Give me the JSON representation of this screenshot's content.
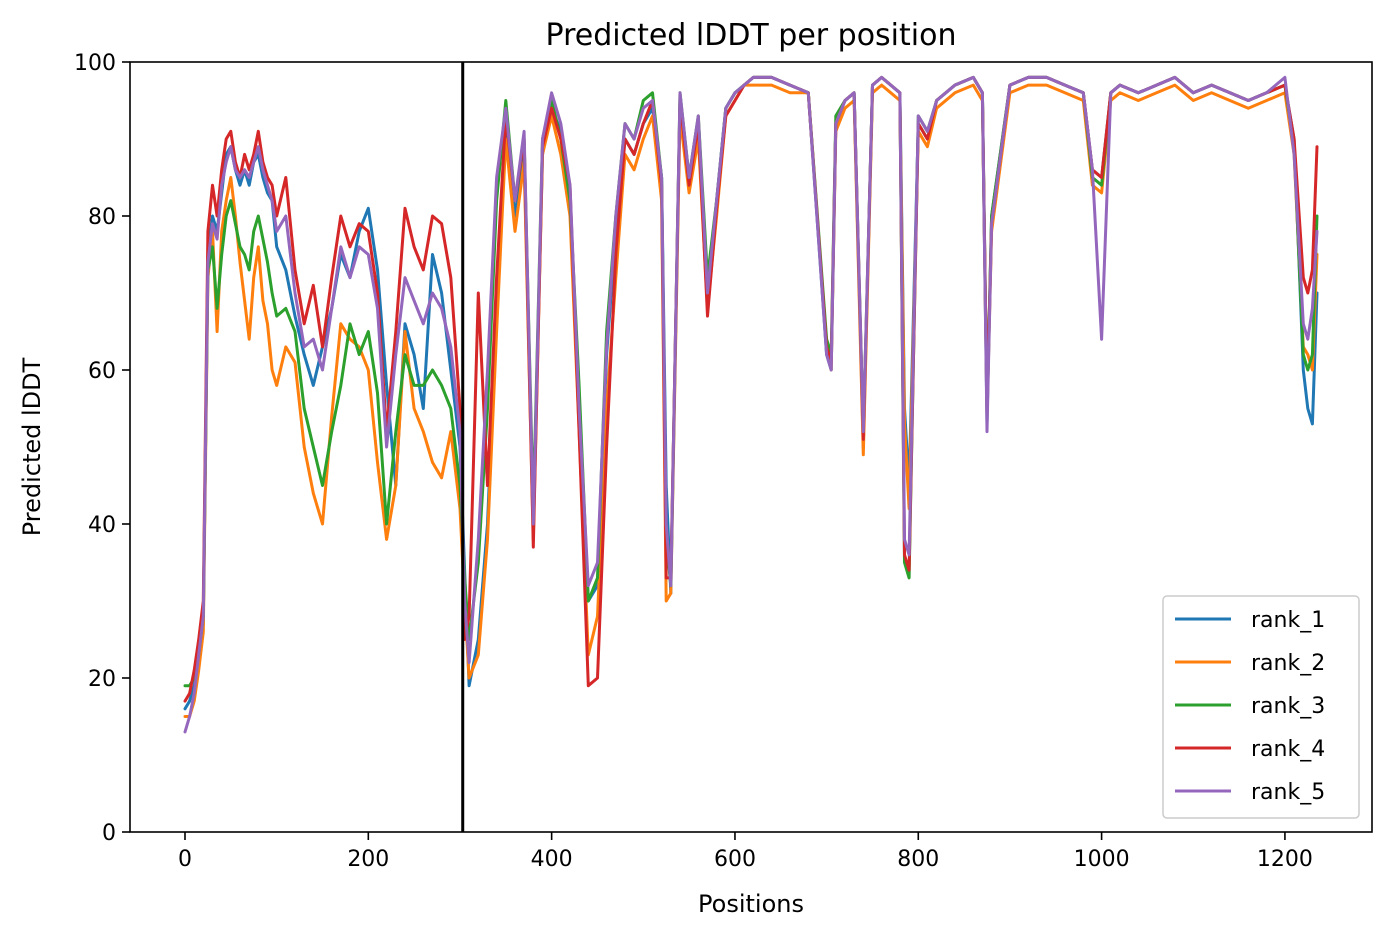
{
  "chart_data": {
    "type": "line",
    "title": "Predicted lDDT per position",
    "xlabel": "Positions",
    "ylabel": "Predicted lDDT",
    "xlim": [
      -60,
      1295
    ],
    "ylim": [
      0,
      100
    ],
    "xticks": [
      0,
      200,
      400,
      600,
      800,
      1000,
      1200
    ],
    "yticks": [
      0,
      20,
      40,
      60,
      80,
      100
    ],
    "vline_x": 303,
    "legend_position": "lower-right",
    "grid": false,
    "colors": {
      "rank_1": "#1f77b4",
      "rank_2": "#ff7f0e",
      "rank_3": "#2ca02c",
      "rank_4": "#d62728",
      "rank_5": "#9467bd",
      "vline": "#000000"
    },
    "series": [
      {
        "name": "rank_1",
        "x": [
          0,
          5,
          10,
          15,
          20,
          25,
          30,
          35,
          40,
          45,
          50,
          55,
          60,
          65,
          70,
          75,
          80,
          85,
          90,
          95,
          100,
          110,
          120,
          130,
          140,
          150,
          160,
          170,
          180,
          190,
          200,
          210,
          220,
          230,
          240,
          250,
          260,
          270,
          280,
          290,
          300,
          305,
          310,
          320,
          330,
          340,
          350,
          360,
          370,
          380,
          390,
          400,
          410,
          420,
          430,
          440,
          450,
          460,
          470,
          480,
          490,
          500,
          510,
          520,
          525,
          530,
          540,
          550,
          560,
          570,
          580,
          590,
          600,
          610,
          620,
          640,
          660,
          680,
          700,
          705,
          710,
          720,
          730,
          740,
          750,
          760,
          770,
          780,
          785,
          790,
          800,
          810,
          820,
          840,
          860,
          870,
          875,
          880,
          900,
          920,
          940,
          960,
          980,
          990,
          1000,
          1010,
          1020,
          1040,
          1060,
          1080,
          1090,
          1100,
          1120,
          1140,
          1160,
          1180,
          1200,
          1210,
          1220,
          1225,
          1230,
          1235
        ],
        "y": [
          16,
          17,
          19,
          22,
          27,
          75,
          80,
          78,
          83,
          88,
          89,
          86,
          84,
          86,
          84,
          87,
          88,
          85,
          83,
          82,
          76,
          73,
          67,
          62,
          58,
          63,
          68,
          75,
          72,
          78,
          81,
          73,
          58,
          45,
          66,
          62,
          55,
          75,
          70,
          60,
          50,
          34,
          19,
          25,
          40,
          68,
          92,
          80,
          88,
          40,
          88,
          94,
          91,
          83,
          55,
          30,
          32,
          62,
          78,
          90,
          88,
          92,
          94,
          85,
          45,
          31,
          95,
          85,
          92,
          70,
          82,
          94,
          96,
          97,
          98,
          98,
          97,
          96,
          62,
          60,
          92,
          95,
          96,
          50,
          97,
          98,
          97,
          96,
          55,
          45,
          92,
          90,
          95,
          97,
          98,
          96,
          53,
          80,
          97,
          98,
          98,
          97,
          96,
          86,
          85,
          96,
          97,
          96,
          97,
          98,
          97,
          96,
          97,
          96,
          95,
          96,
          97,
          90,
          60,
          55,
          53,
          70
        ]
      },
      {
        "name": "rank_2",
        "x": [
          0,
          5,
          10,
          15,
          20,
          25,
          30,
          35,
          40,
          45,
          50,
          55,
          60,
          65,
          70,
          75,
          80,
          85,
          90,
          95,
          100,
          110,
          120,
          130,
          140,
          150,
          160,
          170,
          180,
          190,
          200,
          210,
          220,
          230,
          240,
          250,
          260,
          270,
          280,
          290,
          300,
          305,
          310,
          320,
          330,
          340,
          350,
          360,
          370,
          380,
          390,
          400,
          410,
          420,
          430,
          440,
          450,
          460,
          470,
          480,
          490,
          500,
          510,
          520,
          525,
          530,
          540,
          550,
          560,
          570,
          580,
          590,
          600,
          610,
          620,
          640,
          660,
          680,
          700,
          705,
          710,
          720,
          730,
          740,
          750,
          760,
          770,
          780,
          785,
          790,
          800,
          810,
          820,
          840,
          860,
          870,
          875,
          880,
          900,
          920,
          940,
          960,
          980,
          990,
          1000,
          1010,
          1020,
          1040,
          1060,
          1080,
          1090,
          1100,
          1120,
          1140,
          1160,
          1180,
          1200,
          1210,
          1220,
          1225,
          1230,
          1235
        ],
        "y": [
          15,
          15,
          17,
          21,
          26,
          72,
          78,
          65,
          78,
          82,
          85,
          80,
          74,
          69,
          64,
          72,
          76,
          69,
          66,
          60,
          58,
          63,
          61,
          50,
          44,
          40,
          54,
          66,
          64,
          63,
          60,
          48,
          38,
          45,
          65,
          55,
          52,
          48,
          46,
          52,
          42,
          30,
          20,
          23,
          38,
          65,
          90,
          78,
          87,
          38,
          88,
          93,
          88,
          80,
          52,
          23,
          28,
          55,
          72,
          88,
          86,
          90,
          93,
          82,
          30,
          31,
          93,
          83,
          90,
          68,
          80,
          93,
          95,
          97,
          97,
          97,
          96,
          96,
          63,
          60,
          91,
          94,
          95,
          49,
          96,
          97,
          96,
          95,
          53,
          42,
          91,
          89,
          94,
          96,
          97,
          95,
          54,
          78,
          96,
          97,
          97,
          96,
          95,
          84,
          83,
          95,
          96,
          95,
          96,
          97,
          96,
          95,
          96,
          95,
          94,
          95,
          96,
          88,
          63,
          62,
          60,
          75
        ]
      },
      {
        "name": "rank_3",
        "x": [
          0,
          5,
          10,
          15,
          20,
          25,
          30,
          35,
          40,
          45,
          50,
          55,
          60,
          65,
          70,
          75,
          80,
          85,
          90,
          95,
          100,
          110,
          120,
          130,
          140,
          150,
          160,
          170,
          180,
          190,
          200,
          210,
          220,
          230,
          240,
          250,
          260,
          270,
          280,
          290,
          300,
          305,
          310,
          320,
          330,
          340,
          350,
          360,
          370,
          380,
          390,
          400,
          410,
          420,
          430,
          440,
          450,
          460,
          470,
          480,
          490,
          500,
          510,
          520,
          525,
          530,
          540,
          550,
          560,
          570,
          580,
          590,
          600,
          610,
          620,
          640,
          660,
          680,
          700,
          705,
          710,
          720,
          730,
          740,
          750,
          760,
          770,
          780,
          785,
          790,
          800,
          810,
          820,
          840,
          860,
          870,
          875,
          880,
          900,
          920,
          940,
          960,
          980,
          990,
          1000,
          1010,
          1020,
          1040,
          1060,
          1080,
          1090,
          1100,
          1120,
          1140,
          1160,
          1180,
          1200,
          1210,
          1220,
          1225,
          1230,
          1235
        ],
        "y": [
          19,
          19,
          20,
          23,
          28,
          73,
          76,
          68,
          75,
          80,
          82,
          79,
          76,
          75,
          73,
          78,
          80,
          77,
          74,
          70,
          67,
          68,
          65,
          55,
          50,
          45,
          52,
          58,
          66,
          62,
          65,
          57,
          40,
          52,
          62,
          58,
          58,
          60,
          58,
          55,
          45,
          33,
          25,
          35,
          55,
          82,
          95,
          82,
          90,
          42,
          90,
          95,
          90,
          82,
          58,
          30,
          33,
          65,
          80,
          92,
          90,
          95,
          96,
          85,
          38,
          32,
          96,
          85,
          93,
          72,
          82,
          94,
          96,
          97,
          98,
          98,
          97,
          96,
          64,
          62,
          93,
          95,
          96,
          52,
          97,
          98,
          97,
          96,
          35,
          33,
          93,
          91,
          95,
          97,
          98,
          96,
          55,
          80,
          97,
          98,
          98,
          97,
          96,
          85,
          84,
          96,
          97,
          96,
          97,
          98,
          97,
          96,
          97,
          96,
          95,
          96,
          97,
          89,
          62,
          60,
          62,
          80
        ]
      },
      {
        "name": "rank_4",
        "x": [
          0,
          5,
          10,
          15,
          20,
          25,
          30,
          35,
          40,
          45,
          50,
          55,
          60,
          65,
          70,
          75,
          80,
          85,
          90,
          95,
          100,
          110,
          120,
          130,
          140,
          150,
          160,
          170,
          180,
          190,
          200,
          210,
          220,
          230,
          240,
          250,
          260,
          270,
          280,
          290,
          300,
          305,
          310,
          320,
          330,
          340,
          350,
          360,
          370,
          380,
          390,
          400,
          410,
          420,
          430,
          440,
          450,
          460,
          470,
          480,
          490,
          500,
          510,
          520,
          525,
          530,
          540,
          550,
          560,
          570,
          580,
          590,
          600,
          610,
          620,
          640,
          660,
          680,
          700,
          705,
          710,
          720,
          730,
          740,
          750,
          760,
          770,
          780,
          785,
          790,
          800,
          810,
          820,
          840,
          860,
          870,
          875,
          880,
          900,
          920,
          940,
          960,
          980,
          990,
          1000,
          1010,
          1020,
          1040,
          1060,
          1080,
          1090,
          1100,
          1120,
          1140,
          1160,
          1180,
          1200,
          1210,
          1220,
          1225,
          1230,
          1235
        ],
        "y": [
          17,
          18,
          21,
          25,
          30,
          78,
          84,
          80,
          86,
          90,
          91,
          87,
          85,
          88,
          86,
          88,
          91,
          87,
          85,
          84,
          80,
          85,
          73,
          66,
          71,
          63,
          72,
          80,
          76,
          79,
          78,
          70,
          52,
          65,
          81,
          76,
          73,
          80,
          79,
          72,
          55,
          25,
          28,
          70,
          45,
          72,
          93,
          82,
          90,
          37,
          89,
          94,
          90,
          84,
          52,
          19,
          20,
          50,
          75,
          90,
          88,
          92,
          95,
          84,
          33,
          33,
          95,
          84,
          92,
          67,
          81,
          93,
          95,
          97,
          98,
          98,
          97,
          96,
          63,
          61,
          92,
          95,
          96,
          51,
          97,
          98,
          97,
          96,
          36,
          34,
          92,
          90,
          95,
          97,
          98,
          96,
          55,
          79,
          97,
          98,
          98,
          97,
          96,
          86,
          85,
          96,
          97,
          96,
          97,
          98,
          97,
          96,
          97,
          96,
          95,
          96,
          97,
          90,
          72,
          70,
          73,
          89
        ]
      },
      {
        "name": "rank_5",
        "x": [
          0,
          5,
          10,
          15,
          20,
          25,
          30,
          35,
          40,
          45,
          50,
          55,
          60,
          65,
          70,
          75,
          80,
          85,
          90,
          95,
          100,
          110,
          120,
          130,
          140,
          150,
          160,
          170,
          180,
          190,
          200,
          210,
          220,
          230,
          240,
          250,
          260,
          270,
          280,
          290,
          300,
          305,
          310,
          320,
          330,
          340,
          350,
          360,
          370,
          380,
          390,
          400,
          410,
          420,
          430,
          440,
          450,
          460,
          470,
          480,
          490,
          500,
          510,
          520,
          525,
          530,
          540,
          550,
          560,
          570,
          580,
          590,
          600,
          610,
          620,
          640,
          660,
          680,
          700,
          705,
          710,
          720,
          730,
          740,
          750,
          760,
          770,
          780,
          785,
          790,
          800,
          810,
          820,
          840,
          860,
          870,
          875,
          880,
          900,
          920,
          940,
          960,
          980,
          990,
          1000,
          1010,
          1020,
          1040,
          1060,
          1080,
          1090,
          1100,
          1120,
          1140,
          1160,
          1180,
          1200,
          1210,
          1220,
          1225,
          1230,
          1235
        ],
        "y": [
          13,
          15,
          18,
          23,
          28,
          74,
          79,
          77,
          84,
          87,
          89,
          86,
          85,
          86,
          85,
          87,
          89,
          86,
          84,
          82,
          78,
          80,
          70,
          63,
          64,
          60,
          68,
          76,
          72,
          76,
          75,
          68,
          50,
          62,
          72,
          69,
          66,
          70,
          68,
          63,
          52,
          30,
          22,
          38,
          60,
          85,
          94,
          82,
          91,
          40,
          90,
          96,
          92,
          84,
          55,
          32,
          35,
          63,
          80,
          92,
          90,
          94,
          95,
          85,
          40,
          32,
          96,
          85,
          93,
          70,
          82,
          94,
          96,
          97,
          98,
          98,
          97,
          96,
          62,
          60,
          92,
          95,
          96,
          52,
          97,
          98,
          97,
          96,
          38,
          36,
          93,
          91,
          95,
          97,
          98,
          96,
          52,
          79,
          97,
          98,
          98,
          97,
          96,
          86,
          64,
          96,
          97,
          96,
          97,
          98,
          97,
          96,
          97,
          96,
          95,
          96,
          98,
          88,
          66,
          64,
          68,
          78
        ]
      }
    ]
  }
}
